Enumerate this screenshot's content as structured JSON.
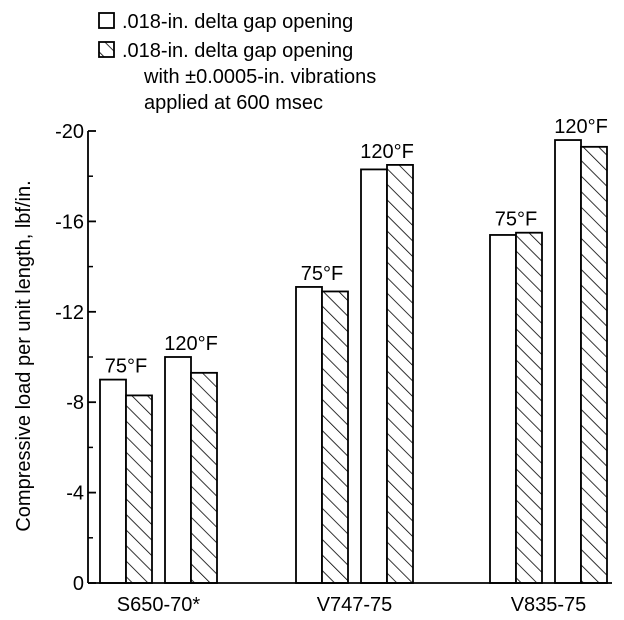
{
  "chart_data": {
    "type": "bar",
    "ylabel": "Compressive load per unit length, lbf/in.",
    "ylim": [
      0,
      -20
    ],
    "yticks": [
      0,
      -4,
      -8,
      -12,
      -16,
      -20
    ],
    "ytick_labels": [
      "0",
      "-4",
      "-8",
      "-12",
      "-16",
      "-20"
    ],
    "grid": false,
    "legend_position": "top-left",
    "categories": [
      "S650-70*",
      "V747-75",
      "V835-75"
    ],
    "temperatures": [
      "75°F",
      "120°F"
    ],
    "series": [
      {
        "name": ".018-in. delta gap opening",
        "pattern": "open",
        "values": {
          "75°F": [
            -9.0,
            -13.1,
            -15.4
          ],
          "120°F": [
            -10.0,
            -18.3,
            -19.6
          ]
        }
      },
      {
        "name": ".018-in. delta gap opening with +0.0005-in. vibrations applied at 600 msec",
        "legend_lines": [
          ".018-in. delta gap opening",
          "with ±0.0005-in. vibrations",
          "applied at 600 msec"
        ],
        "pattern": "hatched",
        "values": {
          "75°F": [
            -8.3,
            -12.9,
            -15.5
          ],
          "120°F": [
            -9.3,
            -18.5,
            -19.3
          ]
        }
      }
    ],
    "colors": {
      "ink": "#000000",
      "background": "#ffffff"
    }
  }
}
